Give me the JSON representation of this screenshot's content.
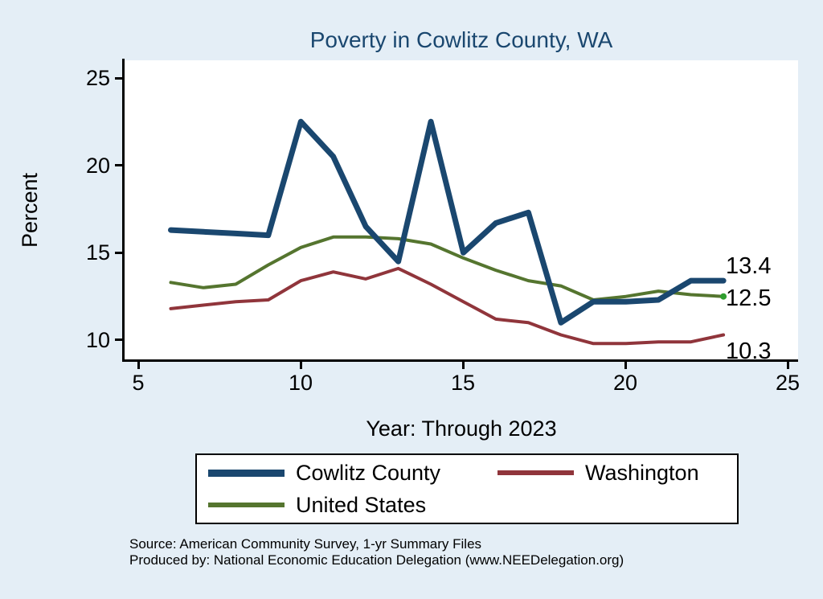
{
  "title": "Poverty in Cowlitz County, WA",
  "axes": {
    "y_label": "Percent",
    "x_label": "Year: Through 2023",
    "y_ticks": [
      "25",
      "20",
      "15",
      "10"
    ],
    "x_ticks": [
      "5",
      "10",
      "15",
      "20",
      "25"
    ]
  },
  "end_labels": {
    "cowlitz": "13.4",
    "us": "12.5",
    "washington": "10.3"
  },
  "legend": {
    "items": [
      {
        "label": "Cowlitz County"
      },
      {
        "label": "Washington"
      },
      {
        "label": "United States"
      }
    ]
  },
  "notes": {
    "line1": "Source: American Community Survey, 1-yr Summary Files",
    "line2": "Produced by: National Economic Education Delegation (www.NEEDelegation.org)"
  },
  "colors": {
    "background": "#e4eef6",
    "title": "#1a476f",
    "us_end_marker": "#2f9e2f"
  },
  "chart_data": {
    "type": "line",
    "title": "Poverty in Cowlitz County, WA",
    "xlabel": "Year: Through 2023",
    "ylabel": "Percent",
    "xlim": [
      5,
      25
    ],
    "ylim": [
      10,
      25
    ],
    "grid": false,
    "legend_position": "bottom",
    "x": [
      6,
      7,
      8,
      9,
      10,
      11,
      12,
      13,
      14,
      15,
      16,
      17,
      18,
      19,
      20,
      21,
      22,
      23
    ],
    "series": [
      {
        "name": "Cowlitz County",
        "color": "#1a476f",
        "line_width": 7,
        "end_label": "13.4",
        "values": [
          16.3,
          16.2,
          16.1,
          16.0,
          22.5,
          20.5,
          16.5,
          14.5,
          22.5,
          15.0,
          16.7,
          17.3,
          11.0,
          12.2,
          12.2,
          12.3,
          13.4,
          13.4
        ]
      },
      {
        "name": "Washington",
        "color": "#90353b",
        "line_width": 4,
        "end_label": "10.3",
        "values": [
          11.8,
          12.0,
          12.2,
          12.3,
          13.4,
          13.9,
          13.5,
          14.1,
          13.2,
          12.2,
          11.2,
          11.0,
          10.3,
          9.8,
          9.8,
          9.9,
          9.9,
          10.3
        ]
      },
      {
        "name": "United States",
        "color": "#55752f",
        "line_width": 4,
        "end_label": "12.5",
        "values": [
          13.3,
          13.0,
          13.2,
          14.3,
          15.3,
          15.9,
          15.9,
          15.8,
          15.5,
          14.7,
          14.0,
          13.4,
          13.1,
          12.3,
          12.5,
          12.8,
          12.6,
          12.5
        ]
      }
    ]
  }
}
